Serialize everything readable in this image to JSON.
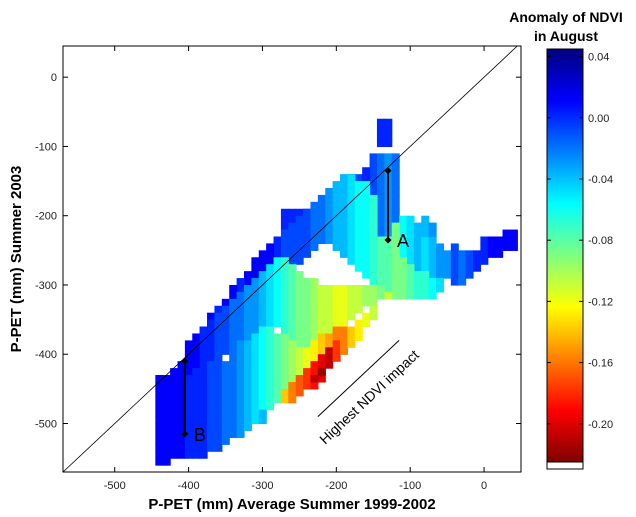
{
  "chart_data": {
    "type": "heatmap",
    "xlabel": "P-PET (mm) Average Summer 1999-2002",
    "ylabel": "P-PET (mm) Summer 2003",
    "xlim": [
      -570,
      50
    ],
    "ylim": [
      -570,
      45
    ],
    "x_ticks": [
      -500,
      -400,
      -300,
      -200,
      -100,
      0
    ],
    "y_ticks": [
      0,
      -100,
      -200,
      -300,
      -400,
      -500
    ],
    "reference_line": "1:1",
    "grid": false,
    "colorbar": {
      "title_lines": [
        "Anomaly of NDVI",
        "in August"
      ],
      "range": [
        -0.225,
        0.045
      ],
      "ticks": [
        "0.04",
        "0.00",
        "-0.04",
        "-0.08",
        "-0.12",
        "-0.16",
        "-0.20"
      ],
      "tick_values": [
        0.04,
        0.0,
        -0.04,
        -0.08,
        -0.12,
        -0.16,
        -0.2
      ]
    },
    "field_cell_size": 10,
    "field": [
      {
        "x": -140,
        "y_range": [
          -100,
          -60
        ],
        "value": 0.01
      },
      {
        "x": -130,
        "y_range": [
          -100,
          -60
        ],
        "value": 0.01
      },
      {
        "x": -150,
        "y_range": [
          -170,
          -110
        ],
        "value": 0.0
      },
      {
        "x": -140,
        "y_range": [
          -230,
          -110
        ],
        "value": -0.01
      },
      {
        "x": -130,
        "y_range": [
          -230,
          -110
        ],
        "value": -0.02
      },
      {
        "x": -120,
        "y_range": [
          -210,
          -110
        ],
        "value": -0.01
      },
      {
        "x": -180,
        "y_range": [
          -170,
          -140
        ],
        "value": 0.01
      },
      {
        "x": -170,
        "y_range": [
          -170,
          -140
        ],
        "value": 0.0
      },
      {
        "x": -160,
        "y_range": [
          -160,
          -130
        ],
        "value": 0.01
      },
      {
        "x": -210,
        "y_range": [
          -200,
          -170
        ],
        "value": 0.01
      },
      {
        "x": -200,
        "y_range": [
          -200,
          -170
        ],
        "value": 0.0
      },
      {
        "x": -190,
        "y_range": [
          -200,
          -160
        ],
        "value": 0.0
      },
      {
        "x": -170,
        "y_range": [
          -170,
          -150
        ],
        "value": 0.0
      },
      {
        "x": -230,
        "y_range": [
          -220,
          -190
        ],
        "value": 0.02
      },
      {
        "x": -240,
        "y_range": [
          -230,
          -190
        ],
        "value": 0.02
      },
      {
        "x": -270,
        "y_range": [
          -220,
          -190
        ],
        "value": 0.01
      },
      {
        "x": -260,
        "y_range": [
          -220,
          -190
        ],
        "value": 0.01
      },
      {
        "x": -250,
        "y_range": [
          -220,
          -190
        ],
        "value": 0.01
      },
      {
        "x": -110,
        "y_range": [
          -260,
          -200
        ],
        "value": -0.05
      },
      {
        "x": -100,
        "y_range": [
          -270,
          -200
        ],
        "value": -0.04
      },
      {
        "x": -90,
        "y_range": [
          -280,
          -210
        ],
        "value": -0.03
      },
      {
        "x": -80,
        "y_range": [
          -280,
          -220
        ],
        "value": -0.04
      },
      {
        "x": -70,
        "y_range": [
          -290,
          -230
        ],
        "value": -0.03
      },
      {
        "x": -60,
        "y_range": [
          -290,
          -240
        ],
        "value": -0.02
      },
      {
        "x": -50,
        "y_range": [
          -290,
          -250
        ],
        "value": -0.02
      },
      {
        "x": -40,
        "y_range": [
          -300,
          -240
        ],
        "value": 0.0
      },
      {
        "x": -30,
        "y_range": [
          -300,
          -250
        ],
        "value": -0.01
      },
      {
        "x": -20,
        "y_range": [
          -290,
          -250
        ],
        "value": 0.0
      },
      {
        "x": -10,
        "y_range": [
          -280,
          -250
        ],
        "value": 0.01
      },
      {
        "x": 0,
        "y_range": [
          -270,
          -230
        ],
        "value": 0.01
      },
      {
        "x": 10,
        "y_range": [
          -260,
          -230
        ],
        "value": 0.02
      },
      {
        "x": 20,
        "y_range": [
          -260,
          -230
        ],
        "value": 0.02
      },
      {
        "x": 30,
        "y_range": [
          -250,
          -220
        ],
        "value": 0.02
      },
      {
        "x": 40,
        "y_range": [
          -250,
          -220
        ],
        "value": 0.02
      },
      {
        "x": -80,
        "y_range": [
          -230,
          -200
        ],
        "value": -0.03
      },
      {
        "x": -70,
        "y_range": [
          -230,
          -210
        ],
        "value": -0.02
      },
      {
        "x": -280,
        "y_range": [
          -300,
          -230
        ],
        "value": 0.01
      },
      {
        "x": -290,
        "y_range": [
          -310,
          -240
        ],
        "value": 0.02
      },
      {
        "x": -300,
        "y_range": [
          -320,
          -250
        ],
        "value": 0.02
      },
      {
        "x": -310,
        "y_range": [
          -330,
          -260
        ],
        "value": 0.02
      },
      {
        "x": -320,
        "y_range": [
          -340,
          -280
        ],
        "value": 0.02
      },
      {
        "x": -330,
        "y_range": [
          -350,
          -290
        ],
        "value": 0.01
      },
      {
        "x": -340,
        "y_range": [
          -360,
          -300
        ],
        "value": 0.02
      },
      {
        "x": -350,
        "y_range": [
          -370,
          -320
        ],
        "value": 0.02
      },
      {
        "x": -360,
        "y_range": [
          -390,
          -330
        ],
        "value": 0.01
      },
      {
        "x": -370,
        "y_range": [
          -400,
          -340
        ],
        "value": 0.02
      },
      {
        "x": -380,
        "y_range": [
          -410,
          -360
        ],
        "value": 0.02
      },
      {
        "x": -270,
        "y_range": [
          -290,
          -220
        ],
        "value": 0.0
      },
      {
        "x": -260,
        "y_range": [
          -280,
          -210
        ],
        "value": 0.0
      },
      {
        "x": -250,
        "y_range": [
          -270,
          -200
        ],
        "value": 0.0
      },
      {
        "x": -240,
        "y_range": [
          -260,
          -190
        ],
        "value": 0.0
      },
      {
        "x": -230,
        "y_range": [
          -250,
          -180
        ],
        "value": -0.01
      },
      {
        "x": -220,
        "y_range": [
          -240,
          -170
        ],
        "value": -0.01
      },
      {
        "x": -210,
        "y_range": [
          -240,
          -160
        ],
        "value": -0.02
      },
      {
        "x": -200,
        "y_range": [
          -250,
          -150
        ],
        "value": -0.03
      },
      {
        "x": -190,
        "y_range": [
          -260,
          -140
        ],
        "value": -0.03
      },
      {
        "x": -180,
        "y_range": [
          -270,
          -140
        ],
        "value": -0.04
      },
      {
        "x": -170,
        "y_range": [
          -280,
          -150
        ],
        "value": -0.05
      },
      {
        "x": -160,
        "y_range": [
          -290,
          -150
        ],
        "value": -0.05
      },
      {
        "x": -150,
        "y_range": [
          -300,
          -170
        ],
        "value": -0.06
      },
      {
        "x": -140,
        "y_range": [
          -300,
          -230
        ],
        "value": -0.07
      },
      {
        "x": -130,
        "y_range": [
          -310,
          -230
        ],
        "value": -0.07
      },
      {
        "x": -120,
        "y_range": [
          -320,
          -210
        ],
        "value": -0.08
      },
      {
        "x": -110,
        "y_range": [
          -320,
          -260
        ],
        "value": -0.08
      },
      {
        "x": -100,
        "y_range": [
          -320,
          -270
        ],
        "value": -0.07
      },
      {
        "x": -90,
        "y_range": [
          -320,
          -280
        ],
        "value": -0.06
      },
      {
        "x": -80,
        "y_range": [
          -320,
          -280
        ],
        "value": -0.06
      },
      {
        "x": -70,
        "y_range": [
          -320,
          -290
        ],
        "value": -0.05
      },
      {
        "x": -60,
        "y_range": [
          -310,
          -290
        ],
        "value": -0.04
      },
      {
        "x": -400,
        "y_range": [
          -430,
          -380
        ],
        "value": 0.02
      },
      {
        "x": -390,
        "y_range": [
          -420,
          -370
        ],
        "value": 0.02
      },
      {
        "x": -380,
        "y_range": [
          -420,
          -360
        ],
        "value": 0.01
      },
      {
        "x": -370,
        "y_range": [
          -410,
          -350
        ],
        "value": 0.01
      },
      {
        "x": -360,
        "y_range": [
          -410,
          -340
        ],
        "value": 0.0
      },
      {
        "x": -350,
        "y_range": [
          -400,
          -330
        ],
        "value": 0.0
      },
      {
        "x": -340,
        "y_range": [
          -390,
          -320
        ],
        "value": -0.01
      },
      {
        "x": -330,
        "y_range": [
          -380,
          -310
        ],
        "value": -0.01
      },
      {
        "x": -320,
        "y_range": [
          -380,
          -300
        ],
        "value": -0.02
      },
      {
        "x": -310,
        "y_range": [
          -370,
          -290
        ],
        "value": -0.02
      },
      {
        "x": -300,
        "y_range": [
          -360,
          -280
        ],
        "value": -0.03
      },
      {
        "x": -290,
        "y_range": [
          -360,
          -270
        ],
        "value": -0.04
      },
      {
        "x": -280,
        "y_range": [
          -360,
          -260
        ],
        "value": -0.05
      },
      {
        "x": -270,
        "y_range": [
          -370,
          -260
        ],
        "value": -0.06
      },
      {
        "x": -260,
        "y_range": [
          -380,
          -270
        ],
        "value": -0.07
      },
      {
        "x": -250,
        "y_range": [
          -390,
          -280
        ],
        "value": -0.08
      },
      {
        "x": -240,
        "y_range": [
          -390,
          -290
        ],
        "value": -0.08
      },
      {
        "x": -230,
        "y_range": [
          -380,
          -290
        ],
        "value": -0.09
      },
      {
        "x": -220,
        "y_range": [
          -370,
          -300
        ],
        "value": -0.1
      },
      {
        "x": -210,
        "y_range": [
          -370,
          -300
        ],
        "value": -0.1
      },
      {
        "x": -200,
        "y_range": [
          -360,
          -300
        ],
        "value": -0.11
      },
      {
        "x": -190,
        "y_range": [
          -360,
          -300
        ],
        "value": -0.11
      },
      {
        "x": -180,
        "y_range": [
          -350,
          -300
        ],
        "value": -0.1
      },
      {
        "x": -170,
        "y_range": [
          -340,
          -300
        ],
        "value": -0.1
      },
      {
        "x": -160,
        "y_range": [
          -330,
          -300
        ],
        "value": -0.09
      },
      {
        "x": -150,
        "y_range": [
          -330,
          -300
        ],
        "value": -0.09
      },
      {
        "x": -140,
        "y_range": [
          -320,
          -300
        ],
        "value": -0.08
      },
      {
        "x": -130,
        "y_range": [
          -320,
          -310
        ],
        "value": -0.1
      },
      {
        "x": -440,
        "y_range": [
          -560,
          -430
        ],
        "value": 0.02
      },
      {
        "x": -430,
        "y_range": [
          -560,
          -430
        ],
        "value": 0.02
      },
      {
        "x": -420,
        "y_range": [
          -550,
          -420
        ],
        "value": 0.02
      },
      {
        "x": -410,
        "y_range": [
          -550,
          -410
        ],
        "value": 0.02
      },
      {
        "x": -400,
        "y_range": [
          -550,
          -430
        ],
        "value": 0.01
      },
      {
        "x": -390,
        "y_range": [
          -550,
          -420
        ],
        "value": 0.01
      },
      {
        "x": -380,
        "y_range": [
          -550,
          -420
        ],
        "value": 0.01
      },
      {
        "x": -370,
        "y_range": [
          -540,
          -410
        ],
        "value": 0.0
      },
      {
        "x": -360,
        "y_range": [
          -540,
          -410
        ],
        "value": 0.0
      },
      {
        "x": -350,
        "y_range": [
          -530,
          -410
        ],
        "value": -0.01
      },
      {
        "x": -340,
        "y_range": [
          -520,
          -390
        ],
        "value": -0.01
      },
      {
        "x": -330,
        "y_range": [
          -520,
          -380
        ],
        "value": -0.02
      },
      {
        "x": -320,
        "y_range": [
          -510,
          -380
        ],
        "value": -0.03
      },
      {
        "x": -310,
        "y_range": [
          -500,
          -370
        ],
        "value": -0.04
      },
      {
        "x": -300,
        "y_range": [
          -490,
          -360
        ],
        "value": -0.05
      },
      {
        "x": -290,
        "y_range": [
          -480,
          -360
        ],
        "value": -0.06
      },
      {
        "x": -280,
        "y_range": [
          -470,
          -370
        ],
        "value": -0.07
      },
      {
        "x": -270,
        "y_range": [
          -460,
          -370
        ],
        "value": -0.08
      },
      {
        "x": -260,
        "y_range": [
          -450,
          -380
        ],
        "value": -0.09
      },
      {
        "x": -250,
        "y_range": [
          -440,
          -390
        ],
        "value": -0.1
      },
      {
        "x": -240,
        "y_range": [
          -430,
          -390
        ],
        "value": -0.11
      },
      {
        "x": -230,
        "y_range": [
          -420,
          -380
        ],
        "value": -0.12
      },
      {
        "x": -220,
        "y_range": [
          -410,
          -370
        ],
        "value": -0.13
      },
      {
        "x": -210,
        "y_range": [
          -400,
          -370
        ],
        "value": -0.14
      },
      {
        "x": -200,
        "y_range": [
          -390,
          -360
        ],
        "value": -0.15
      },
      {
        "x": -190,
        "y_range": [
          -380,
          -360
        ],
        "value": -0.15
      },
      {
        "x": -300,
        "y_range": [
          -500,
          -480
        ],
        "value": -0.03
      },
      {
        "x": -270,
        "y_range": [
          -470,
          -450
        ],
        "value": -0.13
      },
      {
        "x": -260,
        "y_range": [
          -470,
          -440
        ],
        "value": -0.15
      },
      {
        "x": -250,
        "y_range": [
          -460,
          -430
        ],
        "value": -0.16
      },
      {
        "x": -240,
        "y_range": [
          -450,
          -420
        ],
        "value": -0.17
      },
      {
        "x": -230,
        "y_range": [
          -450,
          -410
        ],
        "value": -0.18
      },
      {
        "x": -220,
        "y_range": [
          -440,
          -400
        ],
        "value": -0.19
      },
      {
        "x": -210,
        "y_range": [
          -420,
          -390
        ],
        "value": -0.2
      },
      {
        "x": -200,
        "y_range": [
          -410,
          -380
        ],
        "value": -0.17
      },
      {
        "x": -190,
        "y_range": [
          -400,
          -370
        ],
        "value": -0.15
      },
      {
        "x": -180,
        "y_range": [
          -390,
          -360
        ],
        "value": -0.13
      },
      {
        "x": -170,
        "y_range": [
          -380,
          -350
        ],
        "value": -0.12
      },
      {
        "x": -160,
        "y_range": [
          -360,
          -340
        ],
        "value": -0.11
      },
      {
        "x": -150,
        "y_range": [
          -350,
          -330
        ],
        "value": -0.1
      },
      {
        "x": -220,
        "y_range": [
          -430,
          -420
        ],
        "value": -0.21
      },
      {
        "x": -230,
        "y_range": [
          -440,
          -430
        ],
        "value": -0.2
      }
    ],
    "annotations": [
      {
        "label": "A",
        "x_value": -130,
        "y_from": -135,
        "y_to": -235
      },
      {
        "label": "B",
        "x_value": -405,
        "y_from": -410,
        "y_to": -515
      },
      {
        "label": "Highest NDVI impact",
        "x_from": -225,
        "y_from": -490,
        "x_to": -115,
        "y_to": -380
      }
    ]
  },
  "colors": {
    "colormap": [
      "#00007f",
      "#0000ff",
      "#007fff",
      "#00ffff",
      "#7fff7f",
      "#ffff00",
      "#ff7f00",
      "#ff0000",
      "#7f0000"
    ],
    "frame": "#000000",
    "missing": "#ffffff"
  }
}
